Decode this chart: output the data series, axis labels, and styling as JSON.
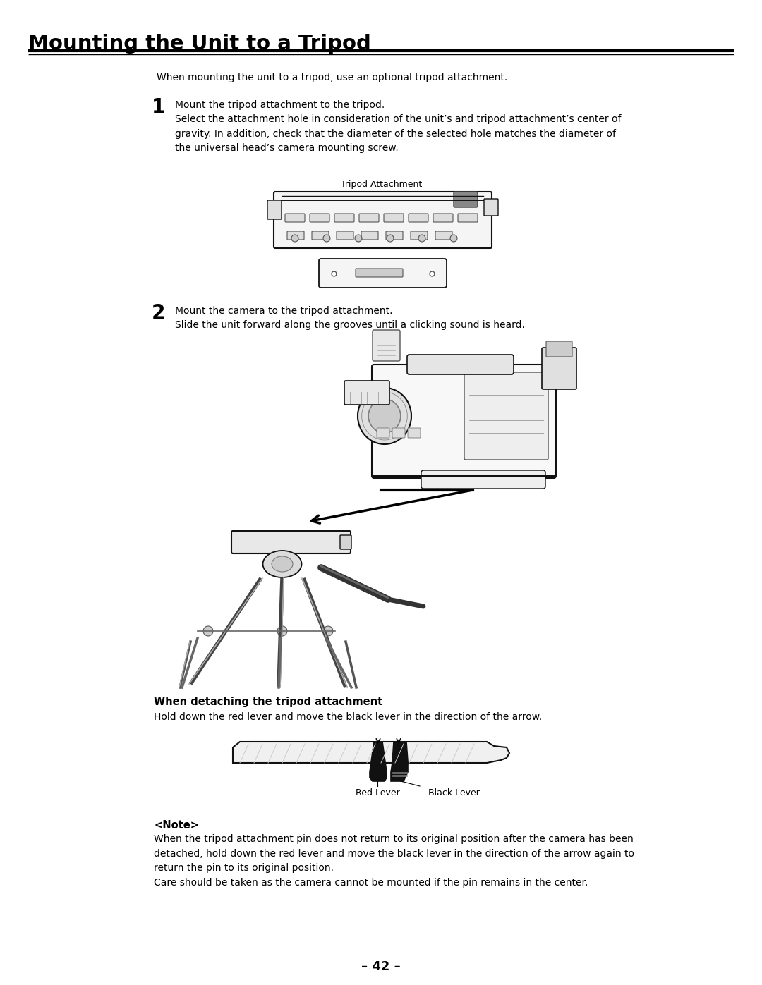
{
  "bg_color": "#ffffff",
  "title": "Mounting the Unit to a Tripod",
  "page_number": "– 42 –",
  "intro_text": "When mounting the unit to a tripod, use an optional tripod attachment.",
  "step1_number": "1",
  "step1_heading": "Mount the tripod attachment to the tripod.",
  "step1_body": "Select the attachment hole in consideration of the unit’s and tripod attachment’s center of\ngravity. In addition, check that the diameter of the selected hole matches the diameter of\nthe universal head’s camera mounting screw.",
  "tripod_attachment_label": "Tripod Attachment",
  "step2_number": "2",
  "step2_heading": "Mount the camera to the tripod attachment.",
  "step2_body": "Slide the unit forward along the grooves until a clicking sound is heard.",
  "detach_heading": "When detaching the tripod attachment",
  "detach_body": "Hold down the red lever and move the black lever in the direction of the arrow.",
  "red_lever_label": "Red Lever",
  "black_lever_label": "Black Lever",
  "note_heading": "<Note>",
  "note_body": "When the tripod attachment pin does not return to its original position after the camera has been\ndetached, hold down the red lever and move the black lever in the direction of the arrow again to\nreturn the pin to its original position.\nCare should be taken as the camera cannot be mounted if the pin remains in the center."
}
